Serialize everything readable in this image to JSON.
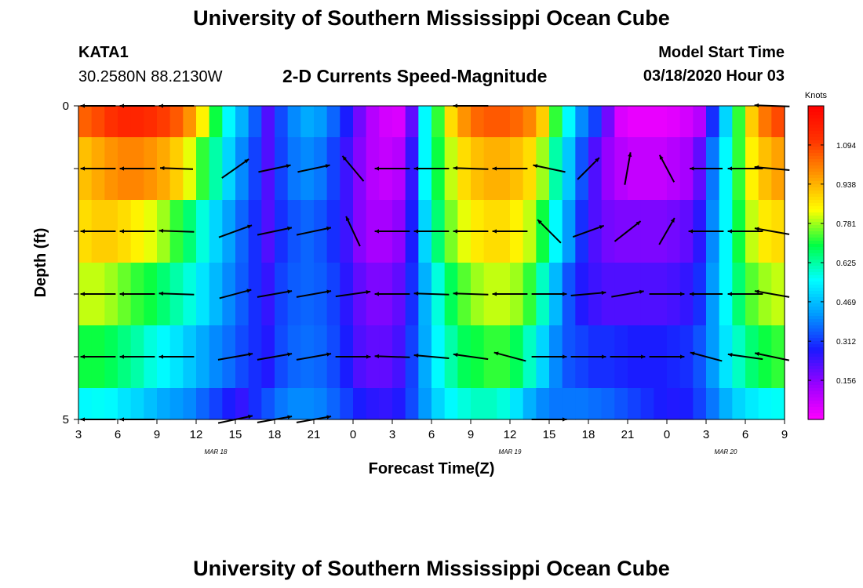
{
  "page": {
    "title_top": "University of Southern Mississippi Ocean Cube",
    "title_bottom": "University of Southern Mississippi Ocean Cube"
  },
  "header": {
    "station": "KATA1",
    "coords": "30.2580N 88.2130W",
    "subtitle": "2-D Currents Speed-Magnitude",
    "model_label": "Model Start Time",
    "model_time": "03/18/2020 Hour 03"
  },
  "chart_data": {
    "type": "heatmap",
    "title": "2-D Currents Speed-Magnitude",
    "xlabel": "Forecast Time(Z)",
    "ylabel": "Depth (ft)",
    "x_start_hour": 3,
    "x_hours": 54,
    "xlim": [
      0,
      54
    ],
    "ylim": [
      0,
      5
    ],
    "x_ticks": [
      {
        "pos": 0,
        "label": "3"
      },
      {
        "pos": 3,
        "label": "6"
      },
      {
        "pos": 6,
        "label": "9"
      },
      {
        "pos": 9,
        "label": "12"
      },
      {
        "pos": 12,
        "label": "15"
      },
      {
        "pos": 15,
        "label": "18"
      },
      {
        "pos": 18,
        "label": "21"
      },
      {
        "pos": 21,
        "label": "0"
      },
      {
        "pos": 24,
        "label": "3"
      },
      {
        "pos": 27,
        "label": "6"
      },
      {
        "pos": 30,
        "label": "9"
      },
      {
        "pos": 33,
        "label": "12"
      },
      {
        "pos": 36,
        "label": "15"
      },
      {
        "pos": 39,
        "label": "18"
      },
      {
        "pos": 42,
        "label": "21"
      },
      {
        "pos": 45,
        "label": "0"
      },
      {
        "pos": 48,
        "label": "3"
      },
      {
        "pos": 51,
        "label": "6"
      },
      {
        "pos": 54,
        "label": "9"
      }
    ],
    "date_labels": [
      {
        "pos": 10.5,
        "label": "MAR 18"
      },
      {
        "pos": 33,
        "label": "MAR 19"
      },
      {
        "pos": 49.5,
        "label": "MAR 20"
      }
    ],
    "y_ticks": [
      {
        "pos": 0,
        "label": "0"
      },
      {
        "pos": 1,
        "label": ""
      },
      {
        "pos": 2,
        "label": ""
      },
      {
        "pos": 3,
        "label": ""
      },
      {
        "pos": 4,
        "label": ""
      },
      {
        "pos": 5,
        "label": "5"
      }
    ],
    "depth_rows": [
      0,
      0.5,
      1.5,
      2.5,
      3.5,
      4.5
    ],
    "speed_knots": [
      [
        1.05,
        1.08,
        1.12,
        1.15,
        1.15,
        1.13,
        1.1,
        1.06,
        0.98,
        0.85,
        0.7,
        0.55,
        0.45,
        0.35,
        0.22,
        0.33,
        0.4,
        0.44,
        0.42,
        0.36,
        0.28,
        0.18,
        0.1,
        0.06,
        0.05,
        0.2,
        0.55,
        0.72,
        0.88,
        0.98,
        1.04,
        1.06,
        1.06,
        1.04,
        1.0,
        0.9,
        0.72,
        0.55,
        0.4,
        0.32,
        0.18,
        0.05,
        0.03,
        0.03,
        0.03,
        0.04,
        0.06,
        0.1,
        0.3,
        0.5,
        0.72,
        0.9,
        1.02,
        1.08
      ],
      [
        0.92,
        0.95,
        0.98,
        1.0,
        1.0,
        0.98,
        0.95,
        0.9,
        0.82,
        0.72,
        0.62,
        0.5,
        0.4,
        0.32,
        0.22,
        0.32,
        0.38,
        0.4,
        0.38,
        0.32,
        0.24,
        0.16,
        0.1,
        0.08,
        0.1,
        0.25,
        0.55,
        0.7,
        0.8,
        0.88,
        0.92,
        0.94,
        0.94,
        0.92,
        0.88,
        0.78,
        0.62,
        0.48,
        0.34,
        0.22,
        0.14,
        0.1,
        0.08,
        0.08,
        0.08,
        0.1,
        0.12,
        0.2,
        0.38,
        0.55,
        0.72,
        0.85,
        0.92,
        0.96
      ],
      [
        0.88,
        0.9,
        0.9,
        0.88,
        0.85,
        0.82,
        0.78,
        0.72,
        0.66,
        0.58,
        0.5,
        0.43,
        0.36,
        0.3,
        0.22,
        0.3,
        0.34,
        0.36,
        0.34,
        0.3,
        0.24,
        0.16,
        0.12,
        0.12,
        0.15,
        0.28,
        0.5,
        0.66,
        0.76,
        0.82,
        0.86,
        0.88,
        0.88,
        0.85,
        0.8,
        0.7,
        0.55,
        0.42,
        0.3,
        0.22,
        0.18,
        0.17,
        0.17,
        0.17,
        0.17,
        0.18,
        0.2,
        0.26,
        0.4,
        0.55,
        0.7,
        0.8,
        0.86,
        0.88
      ],
      [
        0.8,
        0.8,
        0.78,
        0.75,
        0.72,
        0.7,
        0.66,
        0.62,
        0.58,
        0.52,
        0.46,
        0.4,
        0.35,
        0.3,
        0.25,
        0.32,
        0.35,
        0.36,
        0.35,
        0.32,
        0.26,
        0.2,
        0.17,
        0.17,
        0.2,
        0.3,
        0.45,
        0.58,
        0.68,
        0.74,
        0.78,
        0.8,
        0.8,
        0.78,
        0.72,
        0.6,
        0.46,
        0.34,
        0.27,
        0.24,
        0.22,
        0.22,
        0.22,
        0.22,
        0.22,
        0.23,
        0.25,
        0.3,
        0.42,
        0.55,
        0.66,
        0.74,
        0.78,
        0.8
      ],
      [
        0.7,
        0.7,
        0.68,
        0.65,
        0.62,
        0.58,
        0.55,
        0.52,
        0.48,
        0.44,
        0.4,
        0.37,
        0.33,
        0.3,
        0.27,
        0.33,
        0.36,
        0.37,
        0.36,
        0.33,
        0.28,
        0.22,
        0.2,
        0.2,
        0.23,
        0.32,
        0.44,
        0.55,
        0.62,
        0.68,
        0.7,
        0.72,
        0.72,
        0.68,
        0.6,
        0.5,
        0.4,
        0.34,
        0.32,
        0.3,
        0.3,
        0.29,
        0.28,
        0.28,
        0.28,
        0.29,
        0.3,
        0.34,
        0.42,
        0.52,
        0.6,
        0.66,
        0.7,
        0.72
      ],
      [
        0.55,
        0.56,
        0.55,
        0.52,
        0.5,
        0.47,
        0.44,
        0.42,
        0.4,
        0.36,
        0.32,
        0.28,
        0.25,
        0.3,
        0.34,
        0.38,
        0.4,
        0.4,
        0.39,
        0.36,
        0.32,
        0.28,
        0.26,
        0.25,
        0.27,
        0.33,
        0.42,
        0.5,
        0.55,
        0.58,
        0.6,
        0.6,
        0.58,
        0.52,
        0.45,
        0.4,
        0.38,
        0.38,
        0.38,
        0.37,
        0.36,
        0.34,
        0.32,
        0.3,
        0.28,
        0.27,
        0.28,
        0.32,
        0.38,
        0.45,
        0.5,
        0.53,
        0.55,
        0.56
      ]
    ],
    "vector_depths": [
      0,
      1,
      2,
      3,
      4,
      5
    ],
    "vector_times": [
      1.5,
      4.5,
      7.5,
      12,
      15,
      18,
      21,
      24,
      27,
      30,
      33,
      36,
      39,
      42,
      45,
      48,
      51,
      54
    ],
    "vectors": [
      [
        [
          1.6,
          180
        ],
        [
          1.6,
          180
        ],
        [
          1.6,
          180
        ],
        null,
        null,
        null,
        null,
        null,
        null,
        [
          1.6,
          180
        ],
        null,
        null,
        null,
        null,
        null,
        null,
        null,
        [
          1.6,
          178
        ]
      ],
      [
        [
          1.6,
          180
        ],
        [
          1.6,
          180
        ],
        [
          1.5,
          178
        ],
        [
          1.5,
          35
        ],
        [
          1.5,
          12
        ],
        [
          1.5,
          12
        ],
        [
          1.5,
          130
        ],
        [
          1.6,
          180
        ],
        [
          1.6,
          180
        ],
        [
          1.6,
          178
        ],
        [
          1.6,
          180
        ],
        [
          1.5,
          168
        ],
        [
          1.4,
          45
        ],
        [
          1.5,
          80
        ],
        [
          1.4,
          118
        ],
        [
          1.5,
          180
        ],
        [
          1.6,
          180
        ],
        [
          1.6,
          175
        ]
      ],
      [
        [
          1.6,
          180
        ],
        [
          1.6,
          180
        ],
        [
          1.6,
          178
        ],
        [
          1.6,
          20
        ],
        [
          1.6,
          12
        ],
        [
          1.6,
          12
        ],
        [
          1.5,
          115
        ],
        [
          1.6,
          180
        ],
        [
          1.6,
          180
        ],
        [
          1.6,
          180
        ],
        [
          1.6,
          180
        ],
        [
          1.5,
          135
        ],
        [
          1.5,
          20
        ],
        [
          1.5,
          38
        ],
        [
          1.4,
          60
        ],
        [
          1.6,
          180
        ],
        [
          1.6,
          180
        ],
        [
          1.6,
          170
        ]
      ],
      [
        [
          1.6,
          180
        ],
        [
          1.6,
          180
        ],
        [
          1.6,
          178
        ],
        [
          1.5,
          15
        ],
        [
          1.6,
          10
        ],
        [
          1.6,
          10
        ],
        [
          1.6,
          8
        ],
        [
          1.6,
          180
        ],
        [
          1.6,
          178
        ],
        [
          1.6,
          178
        ],
        [
          1.6,
          180
        ],
        [
          1.6,
          0
        ],
        [
          1.6,
          5
        ],
        [
          1.5,
          10
        ],
        [
          1.6,
          0
        ],
        [
          1.5,
          180
        ],
        [
          1.6,
          180
        ],
        [
          1.6,
          170
        ]
      ],
      [
        [
          1.6,
          180
        ],
        [
          1.6,
          180
        ],
        [
          1.6,
          180
        ],
        [
          1.6,
          10
        ],
        [
          1.6,
          10
        ],
        [
          1.6,
          10
        ],
        [
          1.6,
          0
        ],
        [
          1.6,
          178
        ],
        [
          1.6,
          175
        ],
        [
          1.6,
          172
        ],
        [
          1.5,
          165
        ],
        [
          1.6,
          0
        ],
        [
          1.6,
          0
        ],
        [
          1.6,
          0
        ],
        [
          1.6,
          0
        ],
        [
          1.5,
          165
        ],
        [
          1.6,
          172
        ],
        [
          1.6,
          168
        ]
      ],
      [
        [
          1.6,
          180
        ],
        [
          1.6,
          180
        ],
        null,
        [
          1.6,
          12
        ],
        [
          1.6,
          10
        ],
        [
          1.6,
          10
        ],
        null,
        null,
        null,
        null,
        null,
        [
          1.6,
          0
        ],
        null,
        null,
        null,
        null,
        null,
        null
      ]
    ],
    "colorbar": {
      "unit": "Knots",
      "ticks": [
        "1.094",
        "0.938",
        "0.781",
        "0.625",
        "0.469",
        "0.312",
        "0.156"
      ],
      "min": 0,
      "max": 1.25
    }
  },
  "colors": {
    "palette": [
      "#ff00ff",
      "#9900ff",
      "#1a1aff",
      "#0099ff",
      "#00ffff",
      "#00ff44",
      "#ffff00",
      "#ff9900",
      "#ff3300",
      "#ff0000"
    ]
  }
}
